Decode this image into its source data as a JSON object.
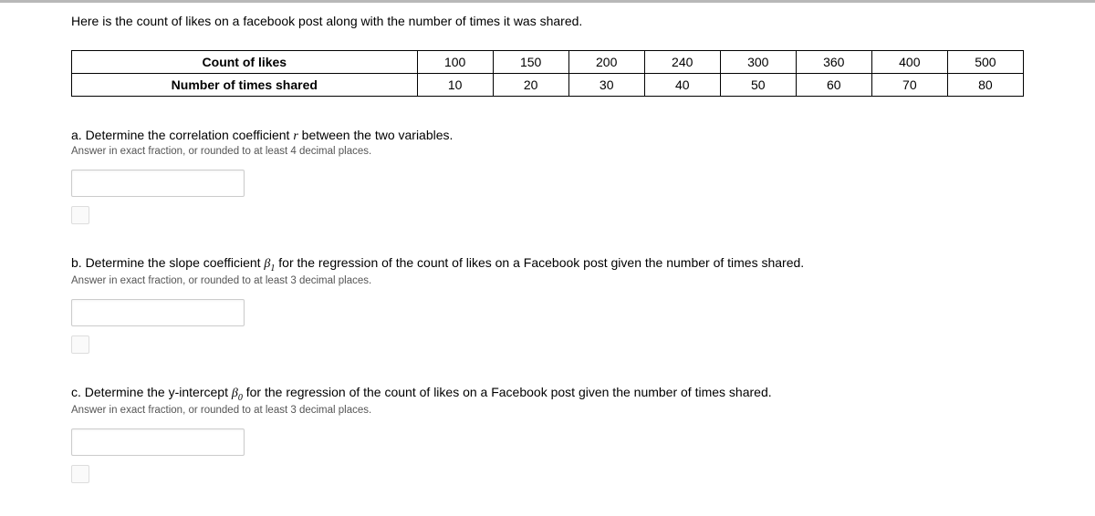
{
  "intro": "Here is the count of likes on a facebook post along with the number of times it was shared.",
  "table": {
    "rows": [
      {
        "header": "Count of likes",
        "values": [
          "100",
          "150",
          "200",
          "240",
          "300",
          "360",
          "400",
          "500"
        ]
      },
      {
        "header": "Number of times shared",
        "values": [
          "10",
          "20",
          "30",
          "40",
          "50",
          "60",
          "70",
          "80"
        ]
      }
    ]
  },
  "questions": {
    "a": {
      "prefix": "a. Determine the correlation coefficient ",
      "var": "r",
      "suffix": " between the two variables.",
      "hint": "Answer in exact fraction, or rounded to at least 4 decimal places."
    },
    "b": {
      "prefix": "b. Determine the slope coefficient ",
      "var": "β",
      "sub": "1",
      "suffix": " for the regression of the count of likes on a Facebook post given the number of times shared.",
      "hint": "Answer in exact fraction, or rounded to at least 3 decimal places."
    },
    "c": {
      "prefix": "c. Determine the y-intercept ",
      "var": "β",
      "sub": "0",
      "suffix": " for the regression of the count of likes on a Facebook post given the number of times shared.",
      "hint": "Answer in exact fraction, or rounded to at least 3 decimal places."
    }
  }
}
